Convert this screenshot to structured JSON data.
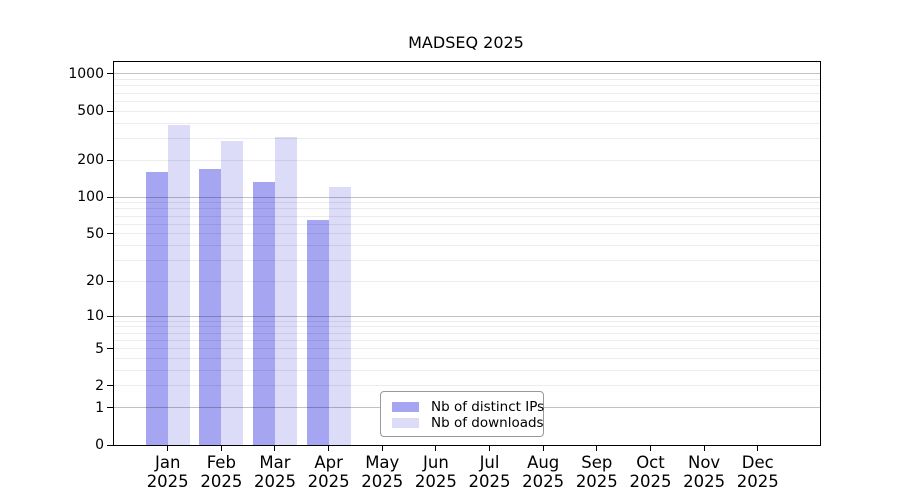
{
  "chart_data": {
    "type": "bar",
    "title": "MADSEQ 2025",
    "categories": [
      "Jan",
      "Feb",
      "Mar",
      "Apr",
      "May",
      "Jun",
      "Jul",
      "Aug",
      "Sep",
      "Oct",
      "Nov",
      "Dec"
    ],
    "year_label": "2025",
    "series": [
      {
        "name": "Nb of distinct IPs",
        "color": "#a5a5f2",
        "values": [
          160,
          170,
          133,
          65,
          null,
          null,
          null,
          null,
          null,
          null,
          null,
          null
        ]
      },
      {
        "name": "Nb of downloads",
        "color": "#dcdcf9",
        "values": [
          385,
          287,
          310,
          122,
          null,
          null,
          null,
          null,
          null,
          null,
          null,
          null
        ]
      }
    ],
    "y_axis": {
      "scale": "log10(1+value)",
      "tick_values": [
        0,
        1,
        2,
        5,
        10,
        20,
        50,
        100,
        200,
        500,
        1000
      ],
      "major_grid_values": [
        1,
        10,
        100,
        1000
      ],
      "minor_grid_decades": [
        1,
        10,
        100
      ],
      "top_value": 1250,
      "grid": "horizontal-only"
    },
    "x_axis": {
      "tick_label_line2": "2025"
    },
    "legend": {
      "position": "inside-bottom-center",
      "border_color": "#999999"
    },
    "colors": {
      "grid_minor": "rgba(0,0,0,0.075)",
      "grid_major": "rgba(0,0,0,0.24)",
      "spine": "#000000"
    }
  }
}
